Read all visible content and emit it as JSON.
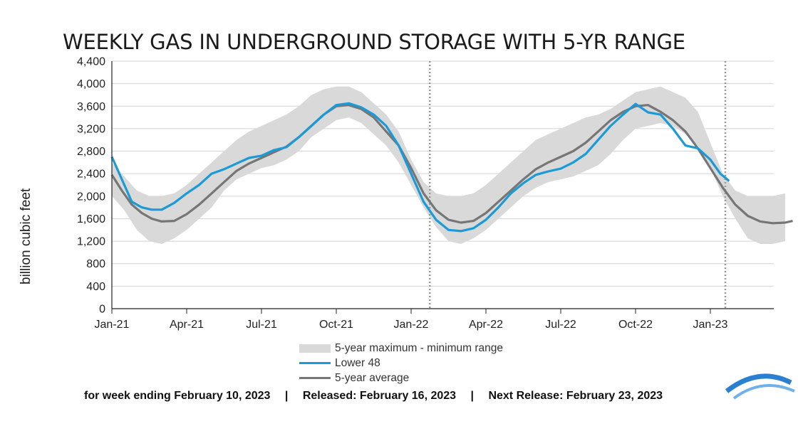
{
  "chart_data": {
    "type": "line",
    "title": "WEEKLY GAS IN UNDERGROUND STORAGE WITH 5-YR RANGE",
    "ylabel": "billion cubic feet",
    "xlabel": "",
    "ylim": [
      0,
      4400
    ],
    "yticks": [
      0,
      400,
      800,
      1200,
      1600,
      2000,
      2400,
      2800,
      3200,
      3600,
      4000,
      4400
    ],
    "ytick_labels": [
      "0",
      "400",
      "800",
      "1,200",
      "1,600",
      "2,000",
      "2,400",
      "2,800",
      "3,200",
      "3,600",
      "4,000",
      "4,400"
    ],
    "xticks": [
      0,
      3,
      6,
      9,
      12,
      15,
      18,
      21,
      24
    ],
    "xtick_labels": [
      "Jan-21",
      "Apr-21",
      "Jul-21",
      "Oct-21",
      "Jan-22",
      "Apr-22",
      "Jul-22",
      "Oct-22",
      "Jan-23"
    ],
    "xlim": [
      0,
      27.4
    ],
    "grid": true,
    "vertical_markers": [
      12.75,
      24.6
    ],
    "legend_placement": "bottom",
    "colors": {
      "range": "#d9d9d9",
      "lower48": "#1a9ad6",
      "avg": "#767676"
    },
    "series": [
      {
        "name": "5-year maximum - minimum range",
        "kind": "band",
        "x": [
          0,
          0.5,
          1,
          1.5,
          2,
          2.5,
          3,
          3.5,
          4,
          4.5,
          5,
          5.5,
          6,
          6.5,
          7,
          7.5,
          8,
          8.5,
          9,
          9.5,
          10,
          10.5,
          11,
          11.5,
          12,
          12.5,
          13,
          13.5,
          14,
          14.5,
          15,
          15.5,
          16,
          16.5,
          17,
          17.5,
          18,
          18.5,
          19,
          19.5,
          20,
          20.5,
          21,
          21.5,
          22,
          22.5,
          23,
          23.5,
          24,
          24.5,
          25,
          25.5,
          26,
          26.5,
          27
        ],
        "max": [
          2600,
          2350,
          2100,
          2000,
          2000,
          2050,
          2200,
          2400,
          2600,
          2800,
          3000,
          3150,
          3250,
          3350,
          3450,
          3600,
          3800,
          3900,
          3950,
          3950,
          3850,
          3650,
          3450,
          3150,
          2650,
          2250,
          2050,
          2000,
          2000,
          2050,
          2200,
          2400,
          2600,
          2800,
          3000,
          3100,
          3200,
          3300,
          3400,
          3450,
          3550,
          3700,
          3850,
          3900,
          3950,
          3850,
          3750,
          3500,
          2950,
          2400,
          2100,
          2000,
          2000,
          2000,
          2050
        ],
        "min": [
          2000,
          1750,
          1400,
          1200,
          1150,
          1250,
          1400,
          1600,
          1800,
          2100,
          2300,
          2400,
          2500,
          2550,
          2650,
          2800,
          3050,
          3200,
          3350,
          3400,
          3300,
          3100,
          2900,
          2600,
          2200,
          1800,
          1450,
          1200,
          1150,
          1250,
          1400,
          1600,
          1800,
          2000,
          2150,
          2250,
          2300,
          2350,
          2450,
          2550,
          2750,
          3000,
          3200,
          3250,
          3300,
          3250,
          3100,
          2900,
          2500,
          2000,
          1600,
          1250,
          1150,
          1150,
          1200
        ]
      },
      {
        "name": "Lower 48",
        "kind": "line",
        "x": [
          0,
          0.4,
          0.8,
          1.2,
          1.6,
          2,
          2.5,
          3,
          3.5,
          4,
          4.5,
          5,
          5.5,
          6,
          6.5,
          7,
          7.5,
          8,
          8.5,
          9,
          9.5,
          10,
          10.5,
          11,
          11.5,
          12,
          12.5,
          13,
          13.5,
          14,
          14.5,
          15,
          15.5,
          16,
          16.5,
          17,
          17.5,
          18,
          18.5,
          19,
          19.5,
          20,
          20.5,
          21,
          21.5,
          22,
          22.5,
          23,
          23.5,
          24,
          24.4,
          24.75
        ],
        "values": [
          2700,
          2300,
          1900,
          1800,
          1760,
          1760,
          1880,
          2050,
          2200,
          2400,
          2480,
          2580,
          2680,
          2720,
          2820,
          2870,
          3050,
          3250,
          3450,
          3620,
          3650,
          3580,
          3450,
          3250,
          2900,
          2400,
          1900,
          1580,
          1400,
          1380,
          1430,
          1580,
          1800,
          2050,
          2230,
          2380,
          2440,
          2490,
          2600,
          2750,
          3000,
          3250,
          3450,
          3640,
          3490,
          3450,
          3200,
          2900,
          2850,
          2650,
          2400,
          2270
        ]
      },
      {
        "name": "5-year average",
        "kind": "line",
        "x": [
          0,
          0.4,
          0.8,
          1.2,
          1.6,
          2,
          2.5,
          3,
          3.5,
          4,
          4.5,
          5,
          5.5,
          6,
          6.5,
          7,
          7.5,
          8,
          8.5,
          9,
          9.5,
          10,
          10.5,
          11,
          11.5,
          12,
          12.5,
          13,
          13.5,
          14,
          14.5,
          15,
          15.5,
          16,
          16.5,
          17,
          17.5,
          18,
          18.5,
          19,
          19.5,
          20,
          20.5,
          21,
          21.5,
          22,
          22.5,
          23,
          23.5,
          24,
          24.5,
          25,
          25.5,
          26,
          26.5,
          27,
          27.3
        ],
        "values": [
          2380,
          2100,
          1850,
          1700,
          1600,
          1550,
          1560,
          1680,
          1850,
          2050,
          2250,
          2450,
          2580,
          2680,
          2780,
          2880,
          3050,
          3250,
          3450,
          3600,
          3620,
          3550,
          3400,
          3150,
          2900,
          2500,
          2050,
          1750,
          1580,
          1530,
          1560,
          1700,
          1900,
          2100,
          2300,
          2480,
          2600,
          2700,
          2800,
          2950,
          3150,
          3350,
          3500,
          3600,
          3620,
          3500,
          3350,
          3150,
          2850,
          2500,
          2150,
          1850,
          1650,
          1550,
          1520,
          1530,
          1560
        ]
      }
    ]
  },
  "legend": {
    "range_label": "5-year maximum - minimum range",
    "lower48_label": "Lower 48",
    "avg_label": "5-year average"
  },
  "footer": {
    "week": "for week ending February 10, 2023",
    "sep1": "|",
    "released": "Released: February 16, 2023",
    "sep2": "|",
    "next": "Next Release: February 23, 2023"
  }
}
